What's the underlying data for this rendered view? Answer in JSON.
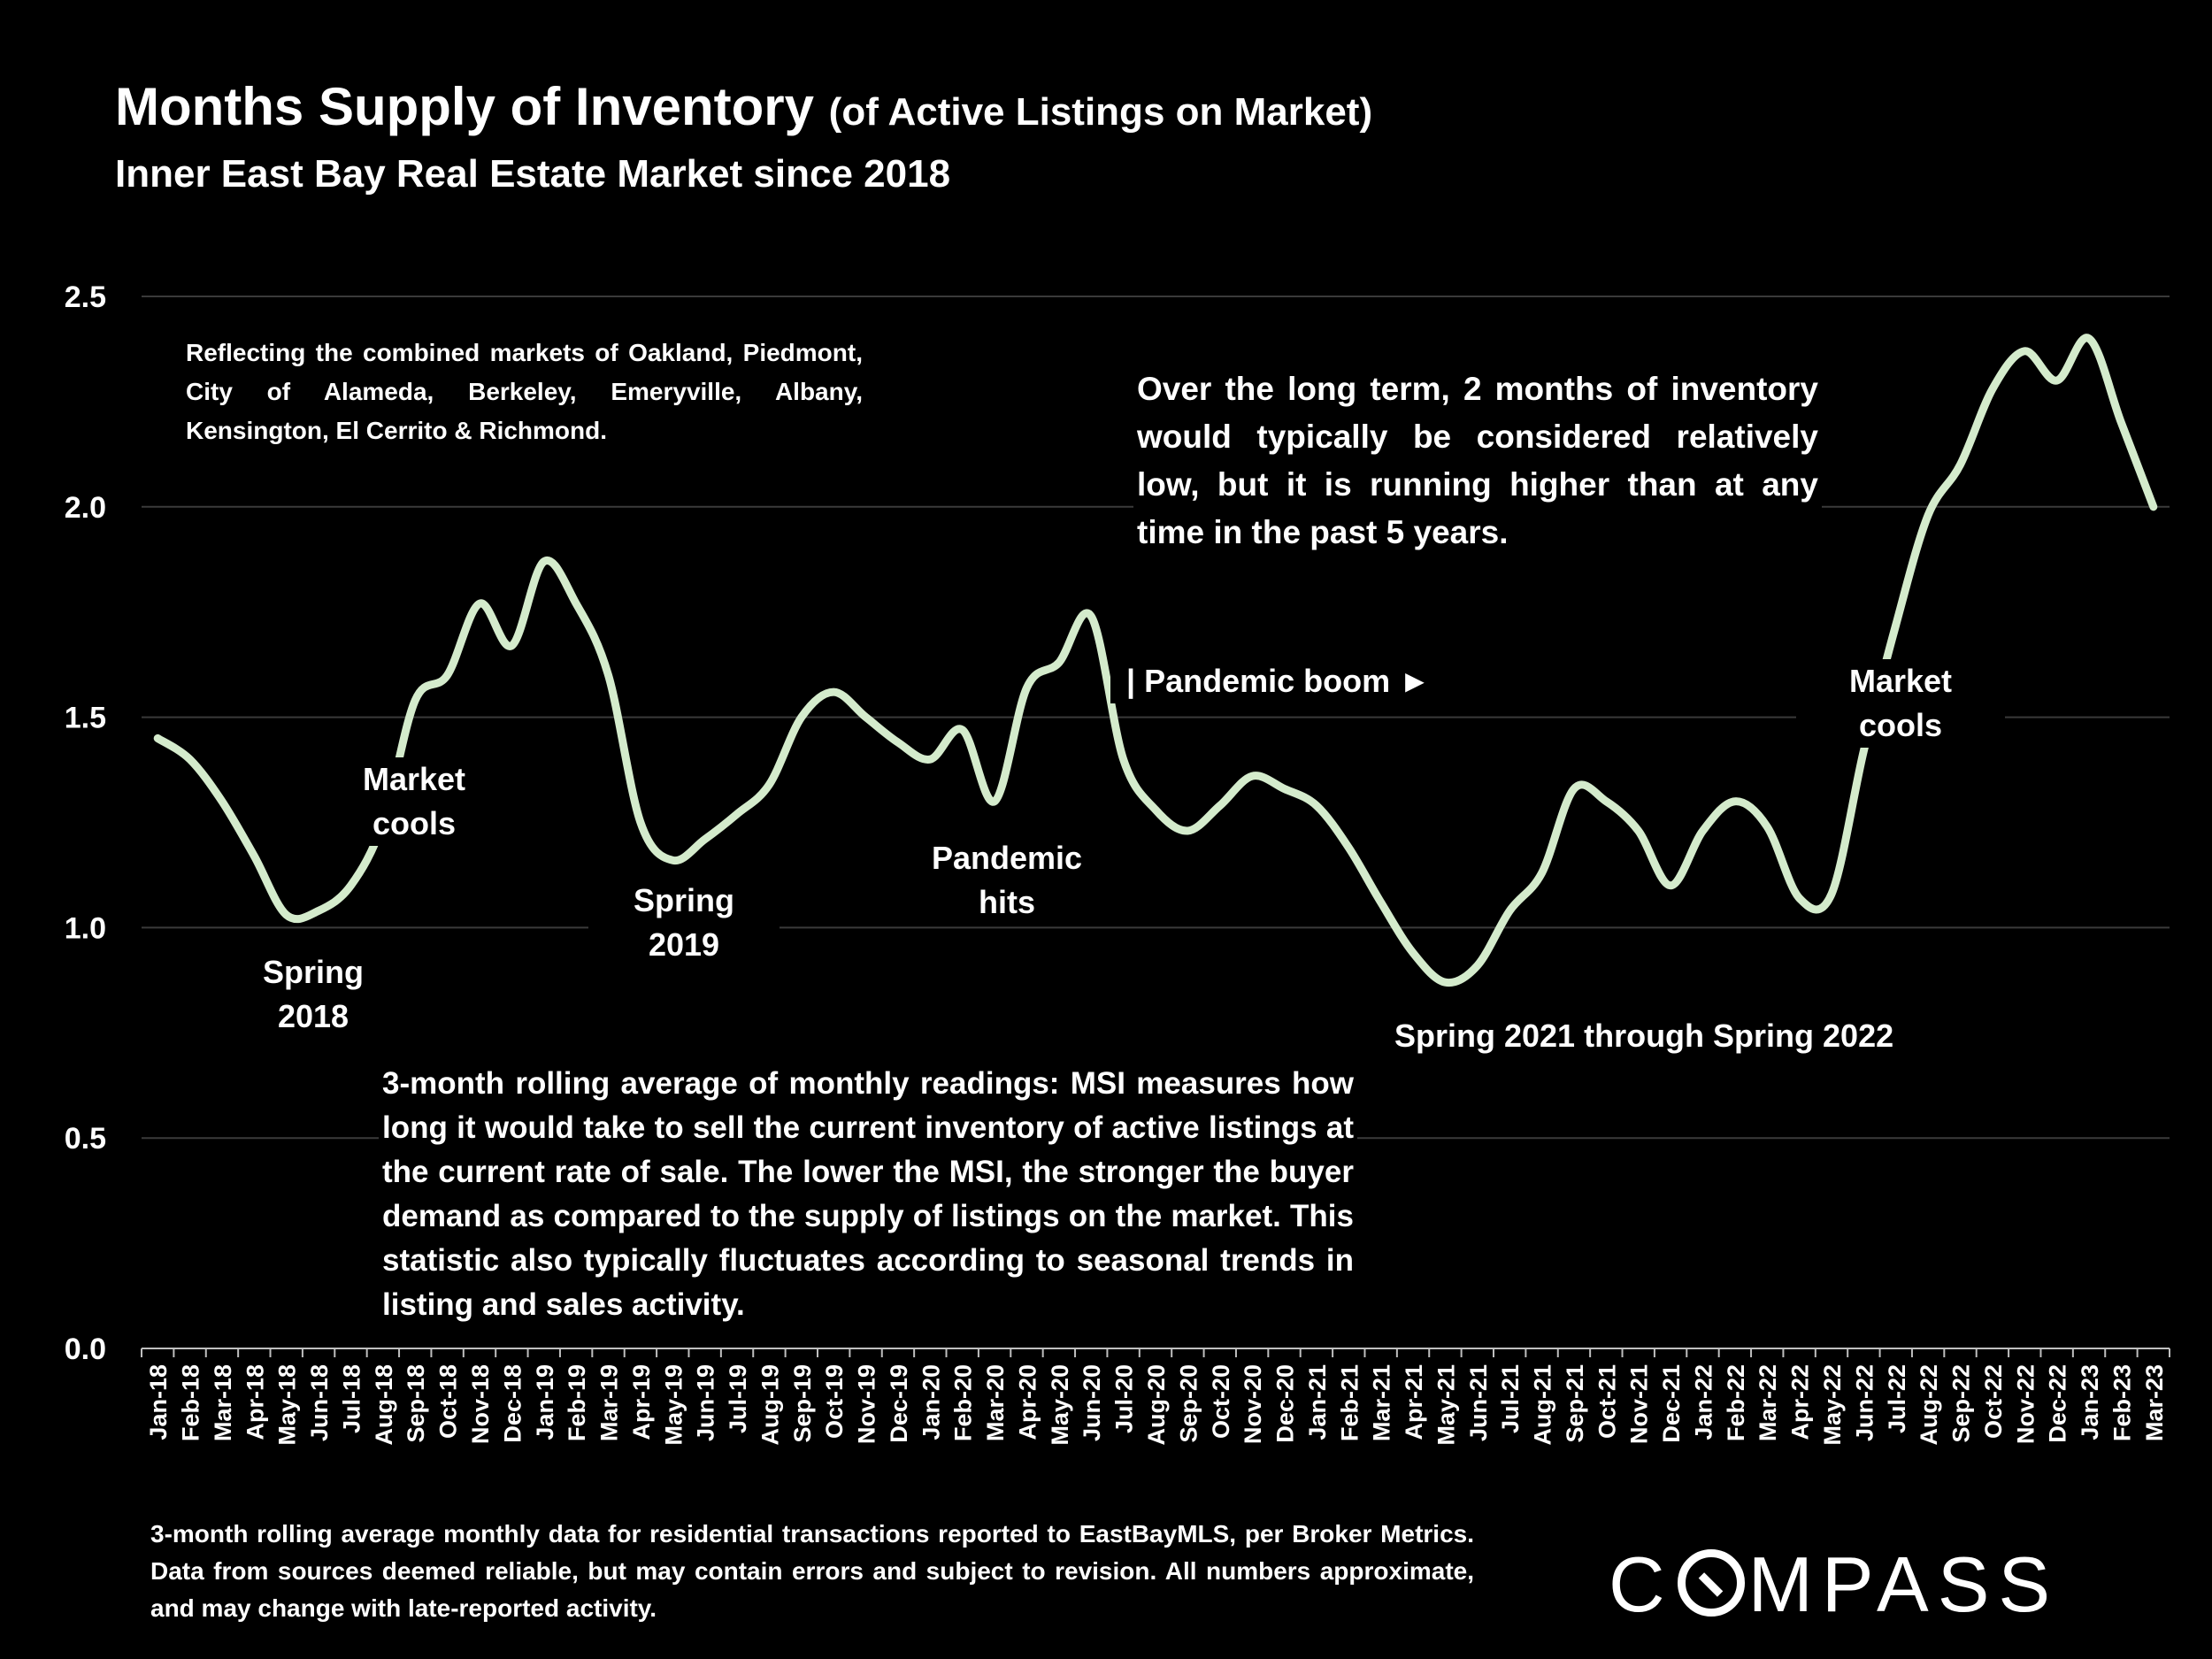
{
  "header": {
    "title": "Months Supply of Inventory",
    "title_qualifier": "(of Active Listings on Market)",
    "subtitle": "Inner East Bay Real Estate Market since 2018"
  },
  "annotations": {
    "markets_note": "Reflecting the combined markets of Oakland, Piedmont, City of Alameda, Berkeley, Emeryville, Albany, Kensington, El Cerrito & Richmond.",
    "longterm_note": "Over the long term, 2 months of inventory would typically be considered relatively low, but it is running higher than at any time in the past 5 years.",
    "msi_note": "3-month rolling average of monthly readings: MSI measures how long it would take to sell the current inventory of active listings at the current rate of sale. The lower the MSI, the stronger the buyer demand as compared to the supply of listings on the market. This statistic also typically fluctuates according to seasonal trends in listing and sales activity.",
    "spring_2018": "Spring 2018",
    "market_cools_1": "Market cools",
    "spring_2019": "Spring 2019",
    "pandemic_hits": "Pandemic hits",
    "pandemic_boom": "| Pandemic boom ►",
    "spring_2021_2022": "Spring 2021 through Spring 2022",
    "market_cools_2": "Market cools"
  },
  "footer": {
    "source": "3-month rolling average monthly data for residential transactions reported to EastBayMLS, per Broker Metrics. Data from sources deemed reliable, but may contain errors and subject to revision. All numbers approximate, and may change with late-reported activity."
  },
  "logo": {
    "text": "COMPASS"
  },
  "colors": {
    "background": "#000000",
    "line": "#d4ebcc",
    "gridline": "#3a3a3a",
    "text": "#ffffff"
  },
  "chart_data": {
    "type": "line",
    "title": "Months Supply of Inventory",
    "xlabel": "",
    "ylabel": "",
    "ylim": [
      0,
      2.5
    ],
    "yticks": [
      "0.0",
      "0.5",
      "1.0",
      "1.5",
      "2.0",
      "2.5"
    ],
    "grid": true,
    "legend": "none",
    "categories": [
      "Jan-18",
      "Feb-18",
      "Mar-18",
      "Apr-18",
      "May-18",
      "Jun-18",
      "Jul-18",
      "Aug-18",
      "Sep-18",
      "Oct-18",
      "Nov-18",
      "Dec-18",
      "Jan-19",
      "Feb-19",
      "Mar-19",
      "Apr-19",
      "May-19",
      "Jun-19",
      "Jul-19",
      "Aug-19",
      "Sep-19",
      "Oct-19",
      "Nov-19",
      "Dec-19",
      "Jan-20",
      "Feb-20",
      "Mar-20",
      "Apr-20",
      "May-20",
      "Jun-20",
      "Jul-20",
      "Aug-20",
      "Sep-20",
      "Oct-20",
      "Nov-20",
      "Dec-20",
      "Jan-21",
      "Feb-21",
      "Mar-21",
      "Apr-21",
      "May-21",
      "Jun-21",
      "Jul-21",
      "Aug-21",
      "Sep-21",
      "Oct-21",
      "Nov-21",
      "Dec-21",
      "Jan-22",
      "Feb-22",
      "Mar-22",
      "Apr-22",
      "May-22",
      "Jun-22",
      "Jul-22",
      "Aug-22",
      "Sep-22",
      "Oct-22",
      "Nov-22",
      "Dec-22",
      "Jan-23",
      "Feb-23",
      "Mar-23"
    ],
    "series": [
      {
        "values": [
          1.45,
          1.4,
          1.3,
          1.17,
          1.03,
          1.04,
          1.1,
          1.25,
          1.54,
          1.6,
          1.77,
          1.67,
          1.87,
          1.77,
          1.6,
          1.25,
          1.16,
          1.21,
          1.27,
          1.34,
          1.5,
          1.56,
          1.5,
          1.44,
          1.4,
          1.47,
          1.3,
          1.57,
          1.63,
          1.74,
          1.4,
          1.28,
          1.23,
          1.29,
          1.36,
          1.33,
          1.29,
          1.19,
          1.06,
          0.94,
          0.87,
          0.91,
          1.04,
          1.13,
          1.33,
          1.3,
          1.23,
          1.1,
          1.23,
          1.3,
          1.24,
          1.07,
          1.08,
          1.42,
          1.72,
          1.98,
          2.1,
          2.28,
          2.37,
          2.3,
          2.4,
          2.2,
          2.0
        ]
      }
    ]
  }
}
